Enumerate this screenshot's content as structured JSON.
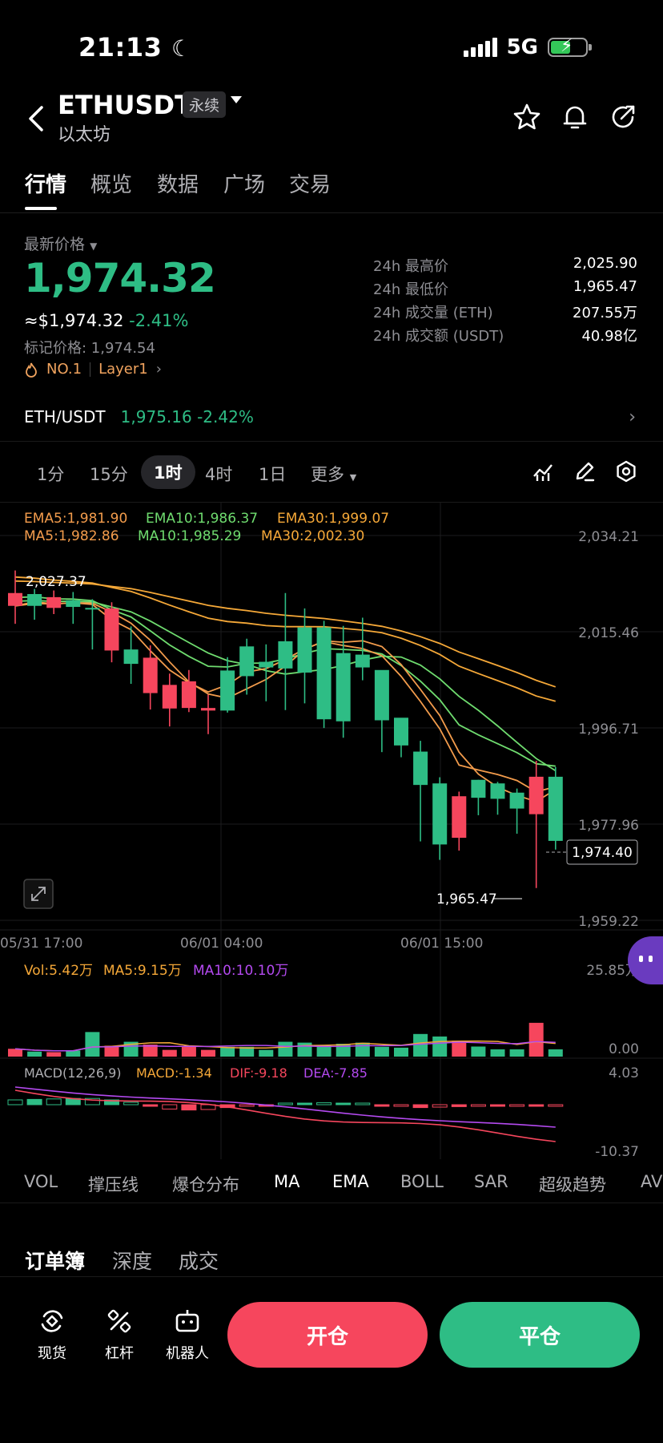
{
  "status_bar": {
    "time": "21:13",
    "network": "5G"
  },
  "header": {
    "pair": "ETHUSDT",
    "badge": "永续",
    "subtitle": "以太坊"
  },
  "tabs": [
    "行情",
    "概览",
    "数据",
    "广场",
    "交易"
  ],
  "price": {
    "label": "最新价格",
    "last": "1,974.32",
    "usd": "≈$1,974.32",
    "change": "-2.41%",
    "mark": "标记价格: 1,974.54",
    "rank": "NO.1",
    "tag": "Layer1"
  },
  "stats": [
    {
      "label": "24h 最高价",
      "value": "2,025.90"
    },
    {
      "label": "24h 最低价",
      "value": "1,965.47"
    },
    {
      "label": "24h 成交量 (ETH)",
      "value": "207.55万"
    },
    {
      "label": "24h 成交额 (USDT)",
      "value": "40.98亿"
    }
  ],
  "reference": {
    "pair": "ETH/USDT",
    "price": "1,975.16",
    "change": "-2.42%"
  },
  "timeframes": [
    "1分",
    "15分",
    "1时",
    "4时",
    "1日",
    "更多"
  ],
  "indicators": {
    "ema": [
      "EMA5:1,981.90",
      "EMA10:1,986.37",
      "EMA30:1,999.07"
    ],
    "ma": [
      "MA5:1,982.86",
      "MA10:1,985.29",
      "MA30:2,002.30"
    ],
    "vol": [
      "Vol:5.42万",
      "MA5:9.15万",
      "MA10:10.10万"
    ],
    "macd": [
      "MACD(12,26,9)",
      "MACD:-1.34",
      "DIF:-9.18",
      "DEA:-7.85"
    ]
  },
  "chart_data": {
    "type": "candlestick",
    "y_ticks": [
      "2,034.21",
      "2,015.46",
      "1,996.71",
      "1,977.96",
      "1,959.22"
    ],
    "ylim": [
      1959.22,
      2034.21
    ],
    "x_ticks": [
      "05/31 17:00",
      "06/01 04:00",
      "06/01 15:00"
    ],
    "high_label": "2,027.37",
    "low_label": "1,965.47",
    "current_label": "1,974.40",
    "vol_axis": [
      "25.85万",
      "0.00"
    ],
    "macd_axis": [
      "4.03",
      "-10.37"
    ],
    "candles": [
      {
        "o": 2023.0,
        "h": 2027.4,
        "l": 2017.0,
        "c": 2020.5
      },
      {
        "o": 2020.5,
        "h": 2023.8,
        "l": 2017.8,
        "c": 2022.8
      },
      {
        "o": 2022.2,
        "h": 2023.5,
        "l": 2018.9,
        "c": 2020.1
      },
      {
        "o": 2020.3,
        "h": 2023.2,
        "l": 2017.0,
        "c": 2021.6
      },
      {
        "o": 2020.1,
        "h": 2021.8,
        "l": 2012.0,
        "c": 2020.1
      },
      {
        "o": 2020.0,
        "h": 2021.2,
        "l": 2009.5,
        "c": 2011.8
      },
      {
        "o": 2009.2,
        "h": 2016.5,
        "l": 2005.3,
        "c": 2012.0
      },
      {
        "o": 2010.4,
        "h": 2012.8,
        "l": 2000.3,
        "c": 2003.5
      },
      {
        "o": 2005.1,
        "h": 2007.3,
        "l": 1997.0,
        "c": 2000.5
      },
      {
        "o": 2005.8,
        "h": 2008.0,
        "l": 1999.8,
        "c": 2000.6
      },
      {
        "o": 2000.6,
        "h": 2003.2,
        "l": 1995.5,
        "c": 2000.1
      },
      {
        "o": 2000.1,
        "h": 2010.5,
        "l": 1999.7,
        "c": 2007.9
      },
      {
        "o": 2006.8,
        "h": 2014.1,
        "l": 2003.2,
        "c": 2012.6
      },
      {
        "o": 2008.5,
        "h": 2013.0,
        "l": 2001.9,
        "c": 2009.6
      },
      {
        "o": 2008.3,
        "h": 2023.0,
        "l": 2000.2,
        "c": 2013.6
      },
      {
        "o": 2007.5,
        "h": 2020.0,
        "l": 2001.5,
        "c": 2016.3
      },
      {
        "o": 1998.4,
        "h": 2017.6,
        "l": 1996.7,
        "c": 2016.3
      },
      {
        "o": 1998.0,
        "h": 2016.6,
        "l": 1994.8,
        "c": 2011.3
      },
      {
        "o": 2008.5,
        "h": 2018.2,
        "l": 2006.0,
        "c": 2011.0
      },
      {
        "o": 1998.2,
        "h": 2007.7,
        "l": 1992.0,
        "c": 2008.0
      },
      {
        "o": 1993.3,
        "h": 1998.2,
        "l": 1991.0,
        "c": 1998.7
      },
      {
        "o": 1985.6,
        "h": 1994.2,
        "l": 1974.6,
        "c": 1992.1
      },
      {
        "o": 1974.0,
        "h": 1987.1,
        "l": 1971.0,
        "c": 1985.9
      },
      {
        "o": 1983.4,
        "h": 1984.3,
        "l": 1972.8,
        "c": 1975.3
      },
      {
        "o": 1983.1,
        "h": 1986.6,
        "l": 1979.7,
        "c": 1986.6
      },
      {
        "o": 1982.9,
        "h": 1986.2,
        "l": 1979.8,
        "c": 1985.9
      },
      {
        "o": 1981.0,
        "h": 1984.9,
        "l": 1976.1,
        "c": 1984.1
      },
      {
        "o": 1987.2,
        "h": 1990.3,
        "l": 1965.5,
        "c": 1979.9
      },
      {
        "o": 1974.7,
        "h": 1989.1,
        "l": 1973.0,
        "c": 1987.2
      }
    ],
    "volumes": [
      2.8,
      1.8,
      1.6,
      2.2,
      8.8,
      3.9,
      5.3,
      4.3,
      2.4,
      3.5,
      2.4,
      3.5,
      3.5,
      2.4,
      5.3,
      5.0,
      4.0,
      4.6,
      5.0,
      3.5,
      3.2,
      8.1,
      7.2,
      5.7,
      3.6,
      2.6,
      2.6,
      12.1,
      2.6
    ],
    "macd_hist": [
      1.0,
      1.1,
      1.2,
      1.3,
      1.3,
      1.0,
      0.5,
      -0.3,
      -0.9,
      -1.1,
      -1.0,
      -0.6,
      -0.2,
      -0.2,
      0.2,
      0.3,
      0.4,
      0.2,
      0.1,
      -0.2,
      -0.3,
      -0.6,
      -0.5,
      -0.4,
      -0.3,
      -0.2,
      -0.1,
      -0.1,
      -0.1
    ]
  },
  "indicator_tabs": [
    "VOL",
    "撑压线",
    "爆仓分布",
    "MA",
    "EMA",
    "BOLL",
    "SAR",
    "超级趋势",
    "AV"
  ],
  "orderbook_tabs": [
    "订单簿",
    "深度",
    "成交"
  ],
  "bottom_nav": {
    "spot": "现货",
    "leverage": "杠杆",
    "robot": "机器人",
    "open": "开仓",
    "close": "平仓"
  },
  "colors": {
    "up": "#2ebd85",
    "down": "#f6465d",
    "ma5": "#f39c4c",
    "ma10": "#6fdc6f",
    "ma30": "#f5a838",
    "vol_ma5": "#f5a838",
    "vol_ma10": "#b44af0"
  }
}
